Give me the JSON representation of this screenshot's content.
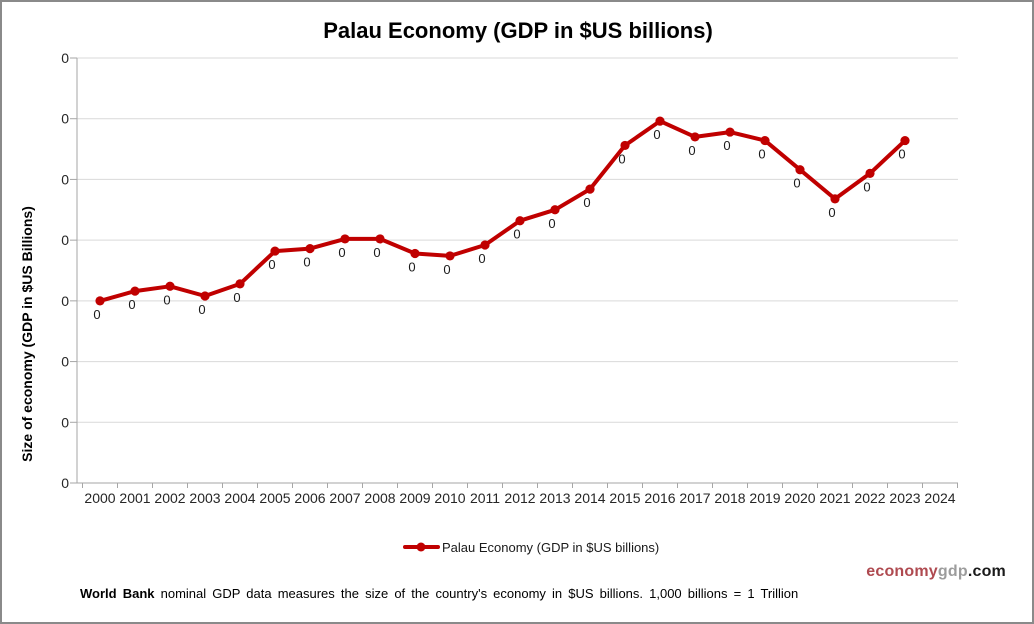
{
  "chart_data": {
    "type": "line",
    "title": "Palau Economy (GDP in $US billions)",
    "xlabel": "",
    "ylabel": "Size of economy (GDP in $US Billions)",
    "x_axis_ticks": [
      "2000",
      "2001",
      "2002",
      "2003",
      "2004",
      "2005",
      "2006",
      "2007",
      "2008",
      "2009",
      "2010",
      "2011",
      "2012",
      "2013",
      "2014",
      "2015",
      "2016",
      "2017",
      "2018",
      "2019",
      "2020",
      "2021",
      "2022",
      "2023",
      "2024"
    ],
    "y_axis": {
      "min": 0,
      "max": 0.35,
      "step": 0.05,
      "tick_labels": [
        "0",
        "0",
        "0",
        "0",
        "0",
        "0",
        "0",
        "0"
      ]
    },
    "grid": true,
    "legend_position": "bottom",
    "grid_color": "#D9D9D9",
    "axis_color": "#A6A6A6",
    "series": [
      {
        "name": "Palau Economy (GDP in $US billions)",
        "color": "#C00000",
        "years": [
          2000,
          2001,
          2002,
          2003,
          2004,
          2005,
          2006,
          2007,
          2008,
          2009,
          2010,
          2011,
          2012,
          2013,
          2014,
          2015,
          2016,
          2017,
          2018,
          2019,
          2020,
          2021,
          2022,
          2023
        ],
        "values": [
          0.15,
          0.158,
          0.162,
          0.154,
          0.164,
          0.191,
          0.193,
          0.201,
          0.201,
          0.189,
          0.187,
          0.196,
          0.216,
          0.225,
          0.242,
          0.278,
          0.298,
          0.285,
          0.289,
          0.282,
          0.258,
          0.234,
          0.255,
          0.282
        ],
        "point_labels": [
          "0",
          "0",
          "0",
          "0",
          "0",
          "0",
          "0",
          "0",
          "0",
          "0",
          "0",
          "0",
          "0",
          "0",
          "0",
          "0",
          "0",
          "0",
          "0",
          "0",
          "0",
          "0",
          "0",
          "0"
        ]
      }
    ]
  },
  "footer": {
    "note_bold": "World Bank",
    "note_rest": " nominal GDP data  measures the size of the country's economy in $US billions. 1,000 billions = 1 Trillion",
    "logo_economy": "economy",
    "logo_gdp": "gdp",
    "logo_com": ".com",
    "logo_colors": {
      "economy": "#AF4A50",
      "gdp": "#9C9C9C",
      "com": "#1A1A1A"
    }
  }
}
